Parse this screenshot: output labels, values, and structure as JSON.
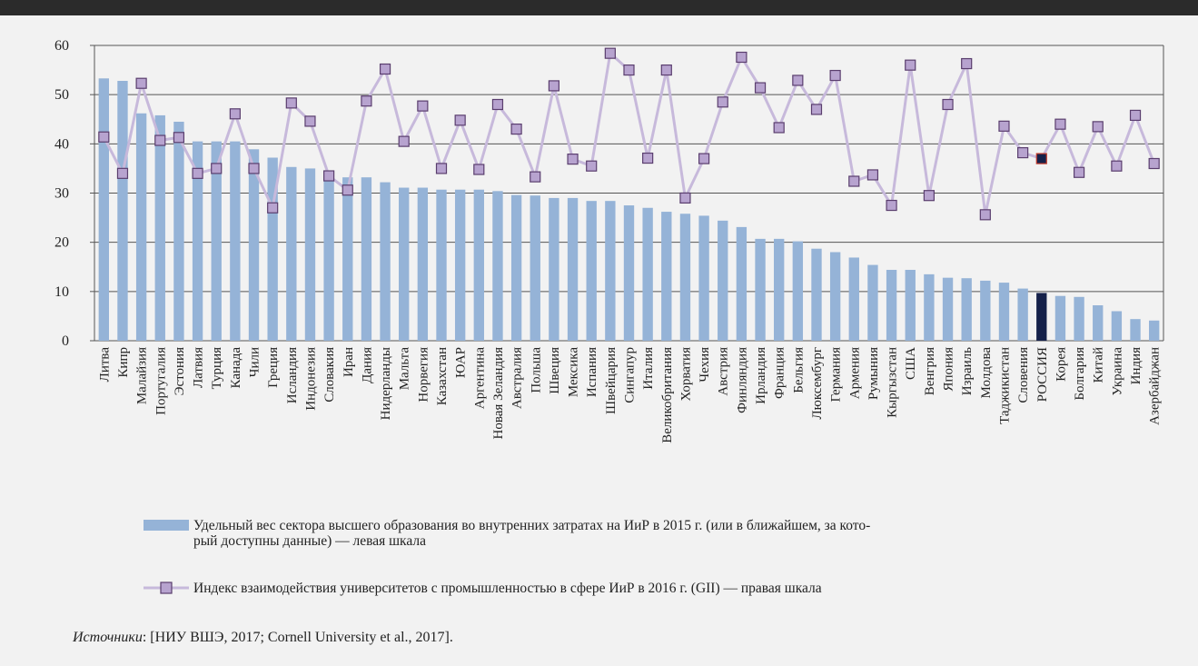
{
  "chart_data": {
    "type": "bar",
    "categories": [
      "Литва",
      "Кипр",
      "Малайзия",
      "Португалия",
      "Эстония",
      "Латвия",
      "Турция",
      "Канада",
      "Чили",
      "Греция",
      "Исландия",
      "Индонезия",
      "Словакия",
      "Иран",
      "Дания",
      "Нидерланды",
      "Мальта",
      "Норвегия",
      "Казахстан",
      "ЮАР",
      "Аргентина",
      "Новая Зеландия",
      "Австралия",
      "Польша",
      "Швеция",
      "Мексика",
      "Испания",
      "Швейцария",
      "Сингапур",
      "Италия",
      "Великобритания",
      "Хорватия",
      "Чехия",
      "Австрия",
      "Финляндия",
      "Ирландия",
      "Франция",
      "Бельгия",
      "Люксембург",
      "Германия",
      "Армения",
      "Румыния",
      "Кыргызстан",
      "США",
      "Венгрия",
      "Япония",
      "Израиль",
      "Молдова",
      "Таджикистан",
      "Словения",
      "РОССИЯ",
      "Корея",
      "Болгария",
      "Китай",
      "Украина",
      "Индия",
      "Азербайджан"
    ],
    "series": [
      {
        "name": "Удельный вес сектора высшего образования во внутренних затратах на ИиР в 2015 г. (или в ближайшем, за который доступны данные) — левая шкала",
        "type": "bar",
        "axis": "left",
        "values": [
          53.3,
          52.8,
          46.2,
          45.8,
          44.5,
          40.5,
          40.5,
          40.5,
          38.9,
          37.2,
          35.3,
          35,
          33.7,
          33.2,
          33.2,
          32.2,
          31.1,
          31.1,
          30.7,
          30.7,
          30.7,
          30.4,
          29.6,
          29.5,
          29,
          29,
          28.4,
          28.4,
          27.5,
          27,
          26.2,
          25.8,
          25.4,
          24.4,
          23.1,
          20.7,
          20.7,
          20.2,
          18.7,
          18,
          16.9,
          15.4,
          14.4,
          14.4,
          13.5,
          12.8,
          12.7,
          12.2,
          11.8,
          10.6,
          9.7,
          9.1,
          8.9,
          7.2,
          6,
          4.4,
          4.1
        ],
        "highlight_index": 50
      },
      {
        "name": "Индекс взаимодействия университетов с промышленностью в сфере ИиР в 2016 г. (GII) — правая шкала",
        "type": "line",
        "axis": "right",
        "values": [
          41.4,
          34,
          52.3,
          40.7,
          41.3,
          34,
          35,
          46.1,
          35,
          27,
          48.3,
          44.6,
          33.5,
          30.6,
          48.7,
          55.2,
          40.5,
          47.7,
          35,
          44.8,
          34.8,
          48,
          43,
          33.3,
          51.8,
          36.9,
          35.5,
          58.4,
          55,
          37.1,
          55,
          29,
          37,
          48.5,
          57.6,
          51.4,
          43.3,
          52.9,
          47,
          53.9,
          32.4,
          33.7,
          27.5,
          56,
          29.5,
          48,
          56.3,
          25.6,
          43.6,
          38.2,
          37,
          44,
          34.2,
          43.5,
          35.5,
          45.8,
          36
        ]
      }
    ],
    "ylim": [
      0,
      60
    ],
    "yticks": [
      0,
      10,
      20,
      30,
      40,
      50,
      60
    ],
    "grid": true,
    "colors": {
      "bar": "#95b3d7",
      "bar_highlight": "#15214a",
      "line": "#c7b9db",
      "marker_fill": "#b7a3cf",
      "marker_stroke": "#5a3e6e",
      "marker_highlight_fill": "#15214a",
      "marker_highlight_stroke": "#c0392b"
    }
  },
  "legend": {
    "bar_label": "Удельный вес сектора высшего образования во внутренних затратах на ИиР в 2015 г. (или в ближайшем, за кото-рый доступны данные) — левая шкала",
    "bar_label_line1": "Удельный вес сектора высшего образования во внутренних затратах на ИиР в 2015 г. (или в ближайшем, за кото-",
    "bar_label_line2": "рый доступны данные) — левая шкала",
    "line_label": "Индекс взаимодействия университетов с промышленностью в сфере ИиР в 2016 г. (GII) — правая шкала"
  },
  "source": {
    "label": "Источники",
    "text": ": [НИУ ВШЭ, 2017; Cornell University et al., 2017]."
  }
}
